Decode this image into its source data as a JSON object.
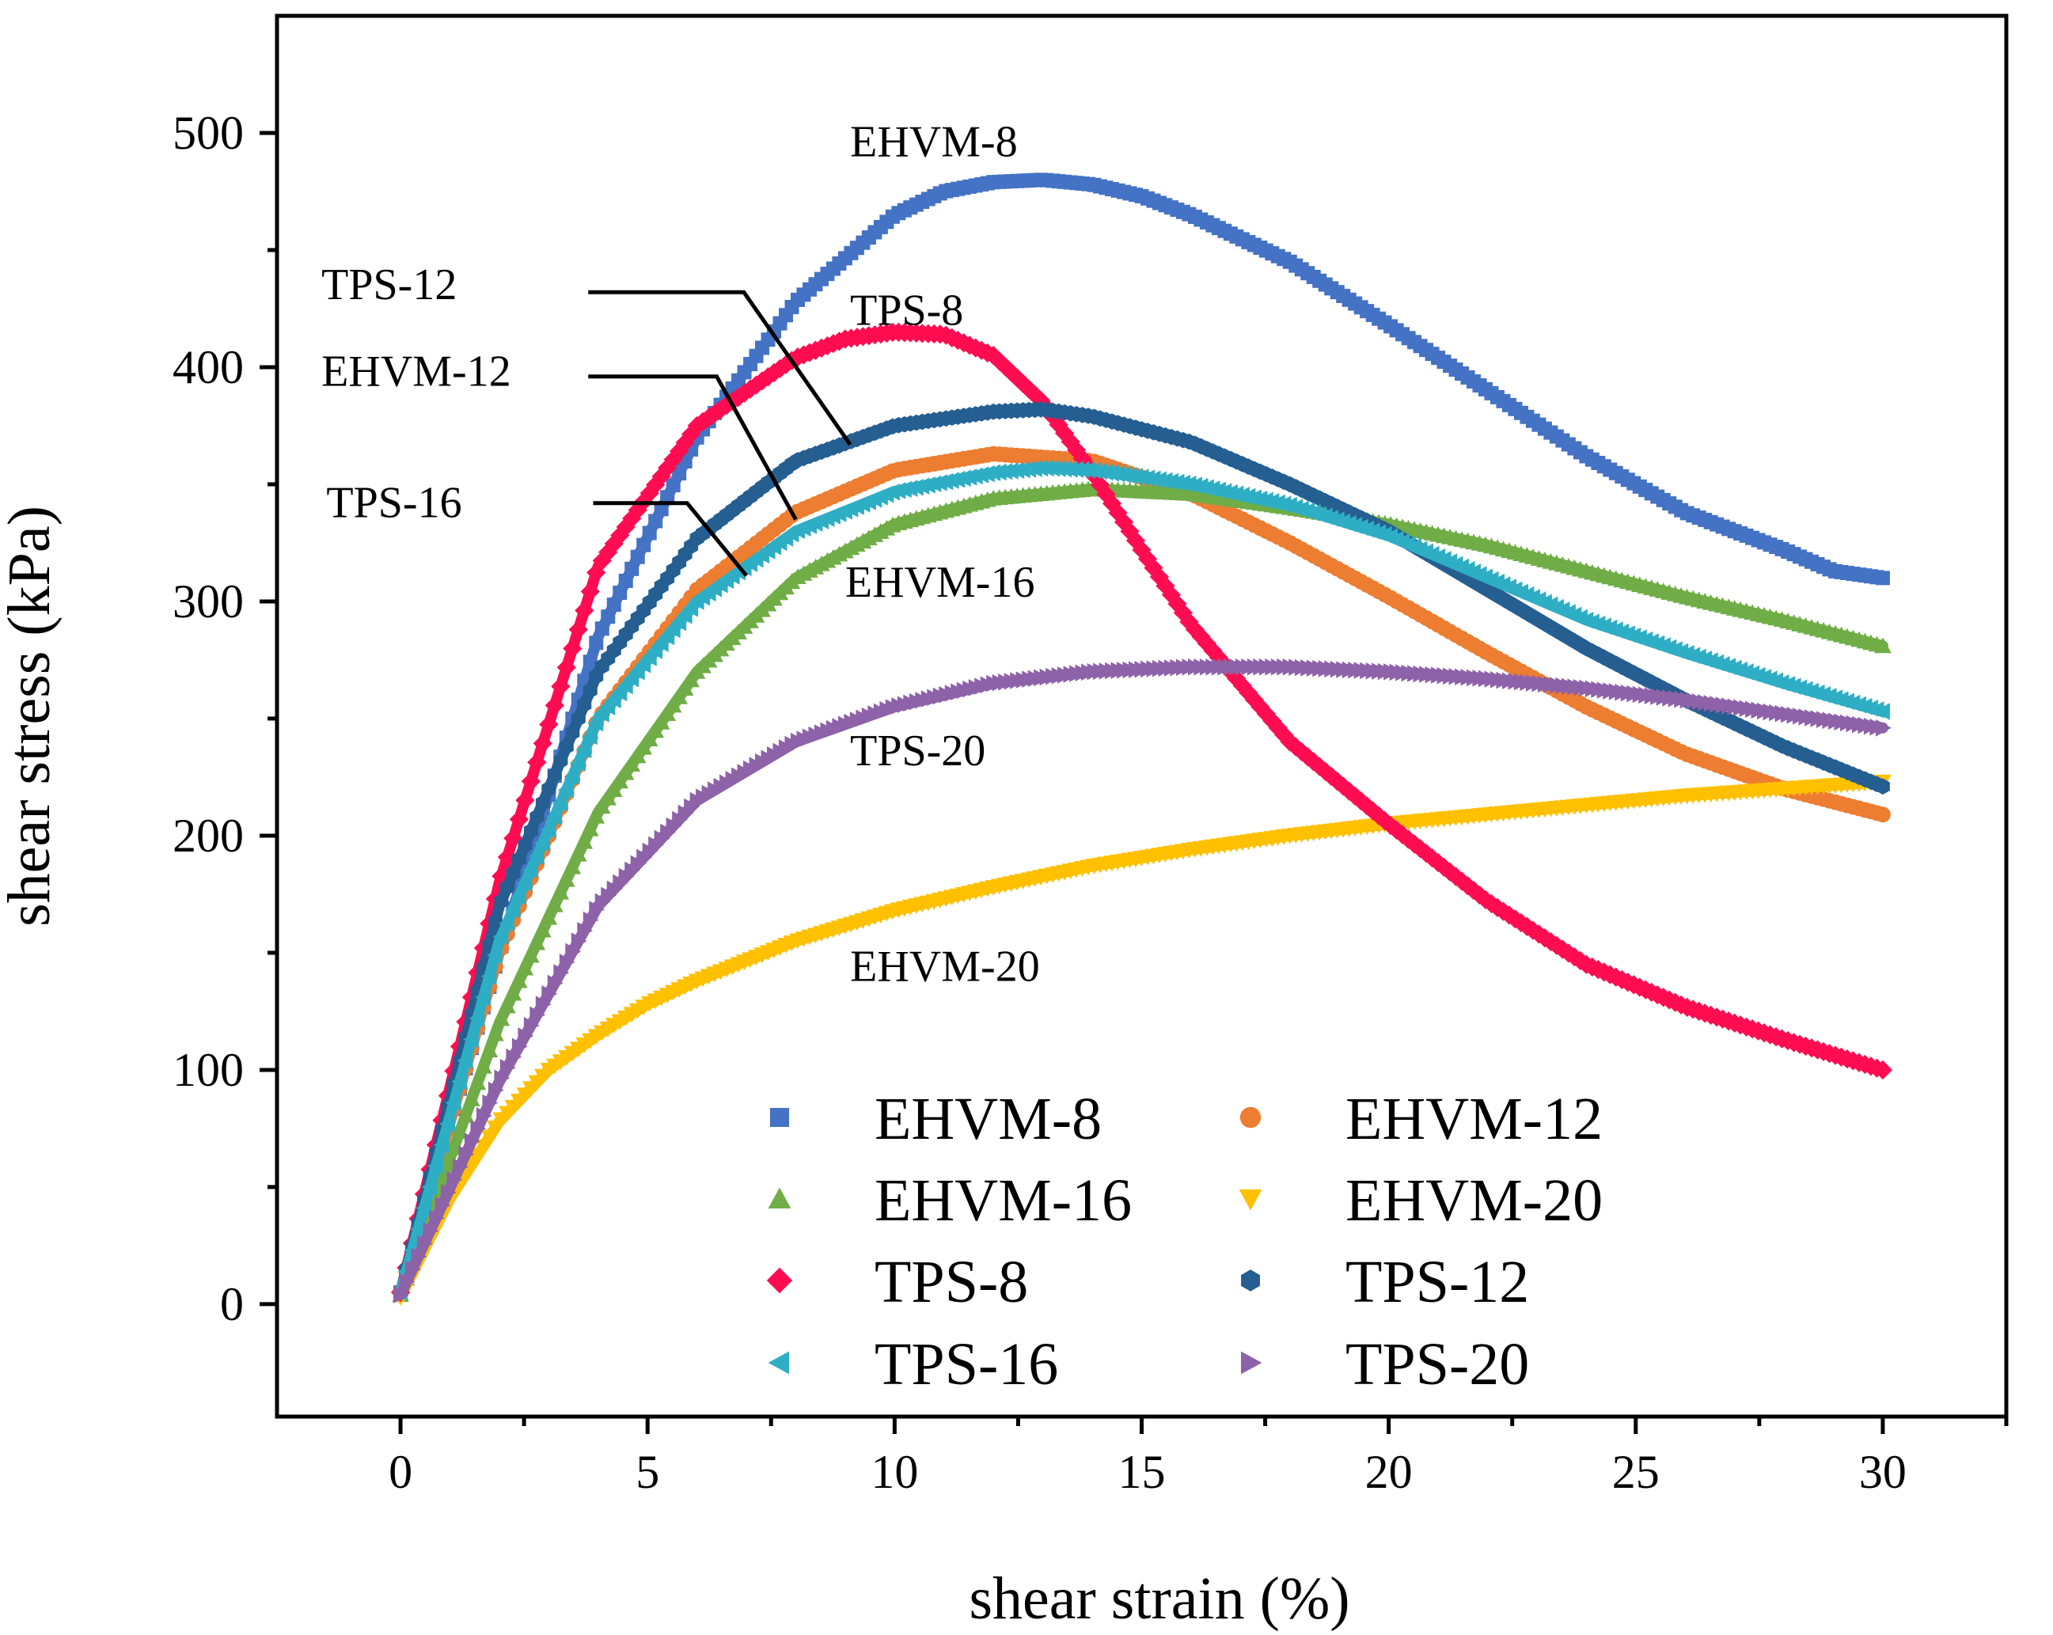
{
  "chart_data": {
    "type": "scatter",
    "xlabel": "shear strain (%)",
    "ylabel": "shear stress (kPa)",
    "xlim": [
      -2.5,
      32.5
    ],
    "ylim": [
      -48,
      550
    ],
    "xticks": [
      0,
      5,
      10,
      15,
      20,
      25,
      30
    ],
    "yticks": [
      0,
      100,
      200,
      300,
      400,
      500
    ],
    "grid": false,
    "legend_position": "bottom-center",
    "series": [
      {
        "name": "EHVM-8",
        "color": "#4472C4",
        "marker": "square",
        "x": [
          0,
          2,
          4,
          6,
          8,
          10,
          11,
          12,
          13,
          14,
          15,
          16,
          18,
          20,
          22,
          24,
          26,
          28,
          29,
          30
        ],
        "y": [
          5,
          150,
          285,
          370,
          428,
          465,
          475,
          479,
          480,
          478,
          473,
          465,
          445,
          418,
          390,
          362,
          338,
          322,
          313,
          310
        ]
      },
      {
        "name": "EHVM-12",
        "color": "#ED7D31",
        "marker": "circle",
        "x": [
          0,
          2,
          4,
          6,
          8,
          10,
          12,
          14,
          16,
          18,
          20,
          22,
          24,
          26,
          28,
          30
        ],
        "y": [
          5,
          150,
          250,
          305,
          338,
          356,
          363,
          360,
          346,
          325,
          302,
          278,
          255,
          235,
          220,
          209
        ]
      },
      {
        "name": "EHVM-16",
        "color": "#70AD47",
        "marker": "triangle-up",
        "x": [
          0,
          2,
          4,
          6,
          8,
          10,
          12,
          14,
          16,
          18,
          20,
          22,
          24,
          26,
          28,
          30
        ],
        "y": [
          4,
          120,
          210,
          270,
          310,
          333,
          344,
          348,
          346,
          340,
          333,
          324,
          313,
          302,
          292,
          281
        ]
      },
      {
        "name": "EHVM-20",
        "color": "#FFC000",
        "marker": "triangle-down",
        "x": [
          0,
          1,
          2,
          3,
          4,
          5,
          6,
          8,
          10,
          12,
          14,
          16,
          18,
          20,
          22,
          24,
          26,
          28,
          30
        ],
        "y": [
          3,
          45,
          78,
          100,
          115,
          128,
          138,
          155,
          168,
          178,
          187,
          194,
          200,
          205,
          209,
          213,
          217,
          220,
          223
        ]
      },
      {
        "name": "TPS-8",
        "color": "#FF0D50",
        "marker": "diamond",
        "x": [
          0,
          2,
          4,
          6,
          8,
          9,
          10,
          11,
          12,
          13,
          14,
          15,
          16,
          18,
          20,
          22,
          24,
          26,
          28,
          30
        ],
        "y": [
          5,
          180,
          315,
          375,
          404,
          412,
          415,
          414,
          405,
          385,
          355,
          322,
          290,
          240,
          205,
          172,
          145,
          127,
          113,
          100
        ]
      },
      {
        "name": "TPS-12",
        "color": "#255E91",
        "marker": "hexagon",
        "x": [
          0,
          2,
          4,
          6,
          8,
          10,
          12,
          13,
          14,
          16,
          18,
          20,
          22,
          24,
          26,
          28,
          30
        ],
        "y": [
          5,
          170,
          270,
          327,
          360,
          375,
          381,
          382,
          379,
          368,
          350,
          330,
          305,
          280,
          258,
          238,
          221
        ]
      },
      {
        "name": "TPS-16",
        "color": "#2EAEC4",
        "marker": "triangle-left",
        "x": [
          0,
          2,
          4,
          6,
          8,
          10,
          12,
          13,
          14,
          16,
          18,
          20,
          22,
          24,
          26,
          28,
          30
        ],
        "y": [
          5,
          155,
          250,
          300,
          330,
          347,
          355,
          357,
          356,
          350,
          341,
          328,
          310,
          292,
          278,
          265,
          253
        ]
      },
      {
        "name": "TPS-20",
        "color": "#8E62A8",
        "marker": "triangle-right",
        "x": [
          0,
          2,
          4,
          6,
          8,
          10,
          12,
          14,
          16,
          18,
          20,
          22,
          24,
          26,
          28,
          30
        ],
        "y": [
          4,
          95,
          170,
          215,
          240,
          255,
          265,
          270,
          272,
          272,
          270,
          267,
          263,
          258,
          252,
          246
        ]
      }
    ],
    "annotations": [
      {
        "text": "EHVM-8",
        "x": 9.1,
        "y": 490
      },
      {
        "text": "TPS-8",
        "x": 9.1,
        "y": 418
      },
      {
        "text": "TPS-12",
        "x": -1.6,
        "y": 429
      },
      {
        "text": "EHVM-12",
        "x": -1.6,
        "y": 392
      },
      {
        "text": "TPS-16",
        "x": -1.5,
        "y": 336
      },
      {
        "text": "EHVM-16",
        "x": 9.0,
        "y": 302
      },
      {
        "text": "TPS-20",
        "x": 9.1,
        "y": 230
      },
      {
        "text": "EHVM-20",
        "x": 9.1,
        "y": 138
      }
    ],
    "leader_lines": [
      {
        "label": "TPS-12",
        "points": [
          [
            3.8,
            432
          ],
          [
            6.95,
            432
          ],
          [
            9.1,
            367
          ]
        ]
      },
      {
        "label": "EHVM-12",
        "points": [
          [
            3.8,
            396
          ],
          [
            6.4,
            396
          ],
          [
            8.0,
            335
          ]
        ]
      },
      {
        "label": "TPS-16",
        "points": [
          [
            3.9,
            342
          ],
          [
            5.8,
            342
          ],
          [
            7.0,
            311
          ]
        ]
      }
    ]
  }
}
